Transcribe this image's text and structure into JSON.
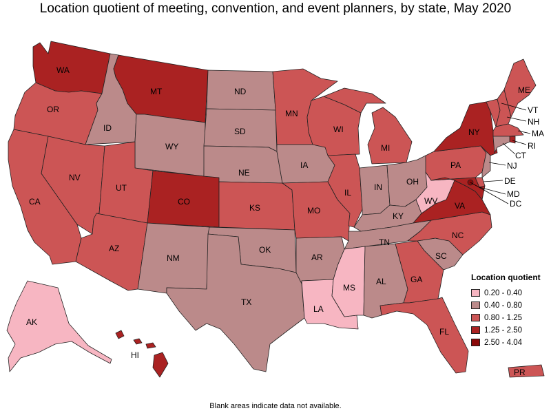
{
  "title": "Location quotient of meeting, convention, and event planners, by state, May 2020",
  "footnote": "Blank areas indicate data not available.",
  "legend": {
    "title": "Location quotient",
    "items": [
      {
        "label": "0.20 - 0.40",
        "color": "#f7b6c2"
      },
      {
        "label": "0.40 - 0.80",
        "color": "#bb8a8a"
      },
      {
        "label": "0.80 - 1.25",
        "color": "#cc5555"
      },
      {
        "label": "1.25 - 2.50",
        "color": "#aa2222"
      },
      {
        "label": "2.50 - 4.04",
        "color": "#8b0a0a"
      }
    ]
  },
  "colors": {
    "c1": "#f7b6c2",
    "c2": "#bb8a8a",
    "c3": "#cc5555",
    "c4": "#aa2222",
    "c5": "#8b0a0a"
  },
  "states": {
    "WA": {
      "label": "WA",
      "class": "c4"
    },
    "OR": {
      "label": "OR",
      "class": "c3"
    },
    "CA": {
      "label": "CA",
      "class": "c3"
    },
    "ID": {
      "label": "ID",
      "class": "c2"
    },
    "NV": {
      "label": "NV",
      "class": "c3"
    },
    "MT": {
      "label": "MT",
      "class": "c4"
    },
    "WY": {
      "label": "WY",
      "class": "c2"
    },
    "UT": {
      "label": "UT",
      "class": "c3"
    },
    "AZ": {
      "label": "AZ",
      "class": "c3"
    },
    "CO": {
      "label": "CO",
      "class": "c4"
    },
    "NM": {
      "label": "NM",
      "class": "c2"
    },
    "ND": {
      "label": "ND",
      "class": "c2"
    },
    "SD": {
      "label": "SD",
      "class": "c2"
    },
    "NE": {
      "label": "NE",
      "class": "c2"
    },
    "KS": {
      "label": "KS",
      "class": "c3"
    },
    "OK": {
      "label": "OK",
      "class": "c2"
    },
    "TX": {
      "label": "TX",
      "class": "c2"
    },
    "MN": {
      "label": "MN",
      "class": "c3"
    },
    "IA": {
      "label": "IA",
      "class": "c2"
    },
    "MO": {
      "label": "MO",
      "class": "c3"
    },
    "AR": {
      "label": "AR",
      "class": "c2"
    },
    "LA": {
      "label": "LA",
      "class": "c1"
    },
    "WI": {
      "label": "WI",
      "class": "c3"
    },
    "IL": {
      "label": "IL",
      "class": "c3"
    },
    "MI": {
      "label": "MI",
      "class": "c3"
    },
    "IN": {
      "label": "IN",
      "class": "c2"
    },
    "OH": {
      "label": "OH",
      "class": "c2"
    },
    "KY": {
      "label": "KY",
      "class": "c2"
    },
    "TN": {
      "label": "TN",
      "class": "c2"
    },
    "MS": {
      "label": "MS",
      "class": "c1"
    },
    "AL": {
      "label": "AL",
      "class": "c2"
    },
    "GA": {
      "label": "GA",
      "class": "c3"
    },
    "FL": {
      "label": "FL",
      "class": "c3"
    },
    "SC": {
      "label": "SC",
      "class": "c2"
    },
    "NC": {
      "label": "NC",
      "class": "c3"
    },
    "VA": {
      "label": "VA",
      "class": "c4"
    },
    "WV": {
      "label": "WV",
      "class": "c1"
    },
    "PA": {
      "label": "PA",
      "class": "c3"
    },
    "NY": {
      "label": "NY",
      "class": "c4"
    },
    "VT": {
      "label": "VT",
      "class": "c3"
    },
    "NH": {
      "label": "NH",
      "class": "c3"
    },
    "ME": {
      "label": "ME",
      "class": "c3"
    },
    "MA": {
      "label": "MA",
      "class": "c3"
    },
    "RI": {
      "label": "RI",
      "class": "c4"
    },
    "CT": {
      "label": "CT",
      "class": "c2"
    },
    "NJ": {
      "label": "NJ",
      "class": "c2"
    },
    "DE": {
      "label": "DE",
      "class": "c3"
    },
    "MD": {
      "label": "MD",
      "class": "c4"
    },
    "DC": {
      "label": "DC",
      "class": "c5"
    },
    "AK": {
      "label": "AK",
      "class": "c1"
    },
    "HI": {
      "label": "HI",
      "class": "c4"
    },
    "PR": {
      "label": "PR",
      "class": "c3"
    }
  }
}
